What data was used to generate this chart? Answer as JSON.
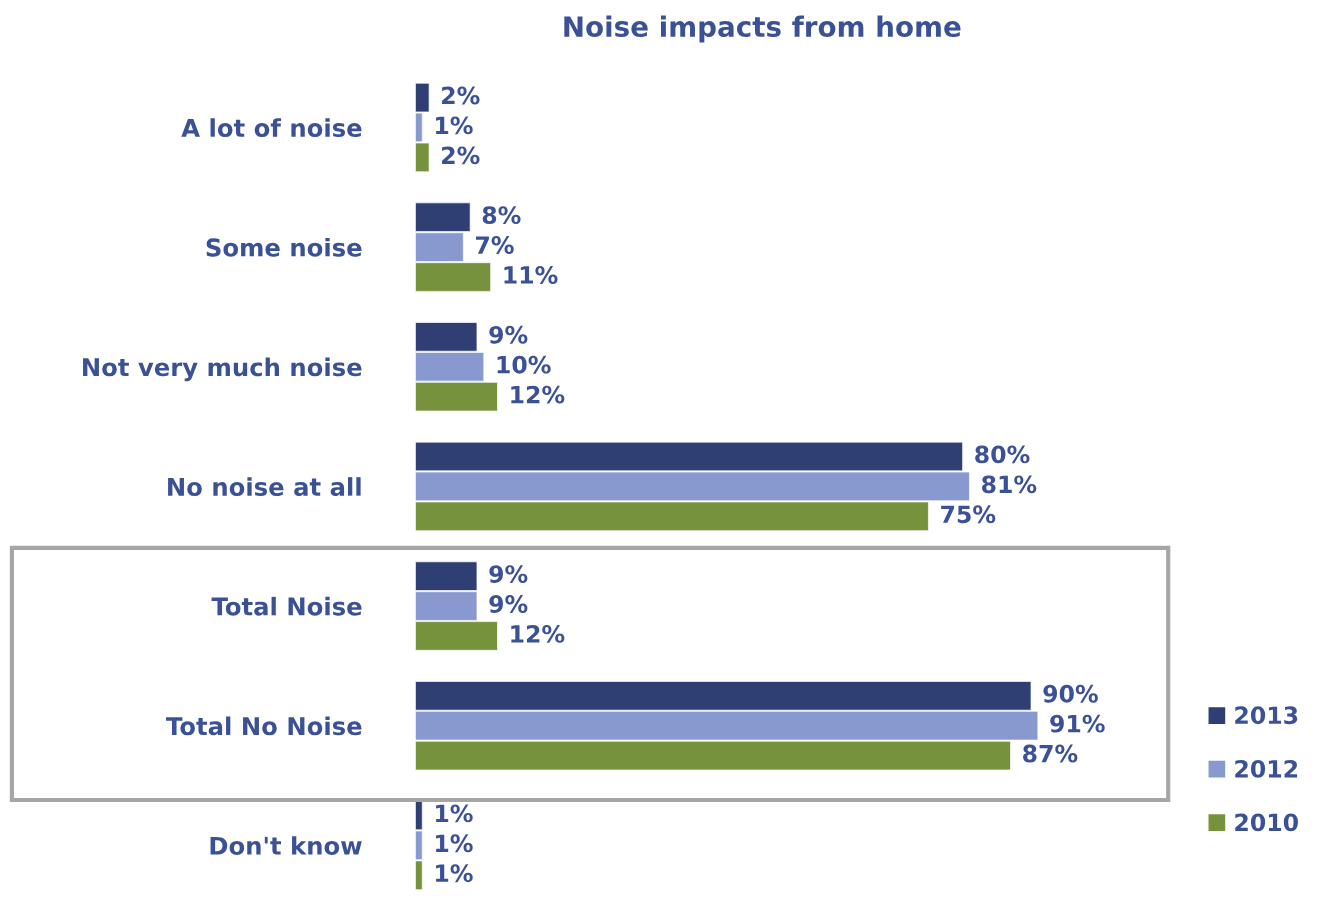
{
  "chart_data": {
    "type": "bar",
    "orientation": "horizontal",
    "title": "Noise impacts from home",
    "categories": [
      "A lot of noise",
      "Some noise",
      "Not very much noise",
      "No noise at all",
      "Total Noise",
      "Total No Noise",
      "Don't know"
    ],
    "series": [
      {
        "name": "2013",
        "color": "#2f3f73",
        "values": [
          2,
          8,
          9,
          80,
          9,
          90,
          1
        ],
        "value_labels": [
          "2%",
          "8%",
          "9%",
          "80%",
          "9%",
          "90%",
          "1%"
        ]
      },
      {
        "name": "2012",
        "color": "#8799cf",
        "values": [
          1,
          7,
          10,
          81,
          9,
          91,
          1
        ],
        "value_labels": [
          "1%",
          "7%",
          "10%",
          "81%",
          "9%",
          "91%",
          "1%"
        ]
      },
      {
        "name": "2010",
        "color": "#76923c",
        "values": [
          2,
          11,
          12,
          75,
          12,
          87,
          1
        ],
        "value_labels": [
          "2%",
          "11%",
          "12%",
          "75%",
          "12%",
          "87%",
          "1%"
        ]
      }
    ],
    "legend": "bottom right",
    "grid": false
  }
}
